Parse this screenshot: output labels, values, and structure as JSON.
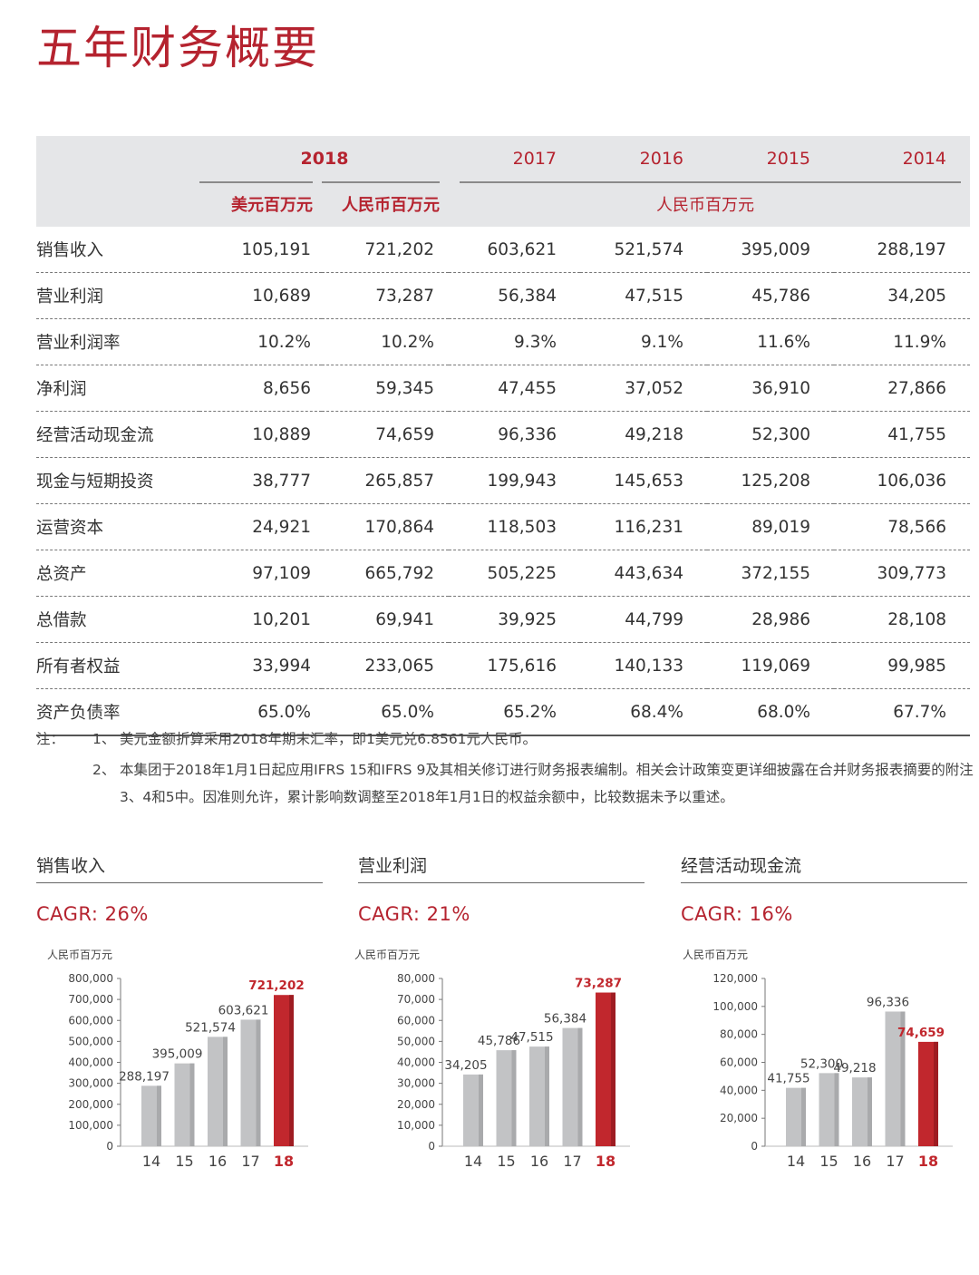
{
  "title": "五年财务概要",
  "table": {
    "years": [
      "2018",
      "2017",
      "2016",
      "2015",
      "2014"
    ],
    "unit_usd": "美元百万元",
    "unit_rmb_2018": "人民币百万元",
    "unit_rmb_other": "人民币百万元",
    "rows": [
      {
        "label": "销售收入",
        "v": [
          "105,191",
          "721,202",
          "603,621",
          "521,574",
          "395,009",
          "288,197"
        ]
      },
      {
        "label": "营业利润",
        "v": [
          "10,689",
          "73,287",
          "56,384",
          "47,515",
          "45,786",
          "34,205"
        ]
      },
      {
        "label": "营业利润率",
        "v": [
          "10.2%",
          "10.2%",
          "9.3%",
          "9.1%",
          "11.6%",
          "11.9%"
        ]
      },
      {
        "label": "净利润",
        "v": [
          "8,656",
          "59,345",
          "47,455",
          "37,052",
          "36,910",
          "27,866"
        ]
      },
      {
        "label": "经营活动现金流",
        "v": [
          "10,889",
          "74,659",
          "96,336",
          "49,218",
          "52,300",
          "41,755"
        ]
      },
      {
        "label": "现金与短期投资",
        "v": [
          "38,777",
          "265,857",
          "199,943",
          "145,653",
          "125,208",
          "106,036"
        ]
      },
      {
        "label": "运营资本",
        "v": [
          "24,921",
          "170,864",
          "118,503",
          "116,231",
          "89,019",
          "78,566"
        ]
      },
      {
        "label": "总资产",
        "v": [
          "97,109",
          "665,792",
          "505,225",
          "443,634",
          "372,155",
          "309,773"
        ]
      },
      {
        "label": "总借款",
        "v": [
          "10,201",
          "69,941",
          "39,925",
          "44,799",
          "28,986",
          "28,108"
        ]
      },
      {
        "label": "所有者权益",
        "v": [
          "33,994",
          "233,065",
          "175,616",
          "140,133",
          "119,069",
          "99,985"
        ]
      },
      {
        "label": "资产负债率",
        "v": [
          "65.0%",
          "65.0%",
          "65.2%",
          "68.4%",
          "68.0%",
          "67.7%"
        ]
      }
    ]
  },
  "notes": {
    "tag": "注：",
    "items": [
      {
        "num": "1、",
        "text": "美元金额折算采用2018年期末汇率，即1美元兑6.8561元人民币。"
      },
      {
        "num": "2、",
        "text": "本集团于2018年1月1日起应用IFRS 15和IFRS 9及其相关修订进行财务报表编制。相关会计政策变更详细披露在合并财务报表摘要的附注3、4和5中。因准则允许，累计影响数调整至2018年1月1日的权益余额中，比较数据未予以重述。"
      }
    ]
  },
  "colors": {
    "accent": "#b5232f",
    "bar_gray": "#c2c3c5",
    "bar_red": "#c1272d"
  },
  "chart_data": [
    {
      "type": "bar",
      "title": "销售收入",
      "cagr": "CAGR: 26%",
      "ylabel": "人民币百万元",
      "categories": [
        "14",
        "15",
        "16",
        "17",
        "18"
      ],
      "values": [
        288197,
        395009,
        521574,
        603621,
        721202
      ],
      "value_labels": [
        "288,197",
        "395,009",
        "521,574",
        "603,621",
        "721,202"
      ],
      "ylim": [
        0,
        800000
      ],
      "yticks": [
        0,
        100000,
        200000,
        300000,
        400000,
        500000,
        600000,
        700000,
        800000
      ],
      "ytick_labels": [
        "0",
        "100,000",
        "200,000",
        "300,000",
        "400,000",
        "500,000",
        "600,000",
        "700,000",
        "800,000"
      ],
      "highlight_index": 4
    },
    {
      "type": "bar",
      "title": "营业利润",
      "cagr": "CAGR: 21%",
      "ylabel": "人民币百万元",
      "categories": [
        "14",
        "15",
        "16",
        "17",
        "18"
      ],
      "values": [
        34205,
        45786,
        47515,
        56384,
        73287
      ],
      "value_labels": [
        "34,205",
        "45,786",
        "47,515",
        "56,384",
        "73,287"
      ],
      "ylim": [
        0,
        80000
      ],
      "yticks": [
        0,
        10000,
        20000,
        30000,
        40000,
        50000,
        60000,
        70000,
        80000
      ],
      "ytick_labels": [
        "0",
        "10,000",
        "20,000",
        "30,000",
        "40,000",
        "50,000",
        "60,000",
        "70,000",
        "80,000"
      ],
      "highlight_index": 4
    },
    {
      "type": "bar",
      "title": "经营活动现金流",
      "cagr": "CAGR: 16%",
      "ylabel": "人民币百万元",
      "categories": [
        "14",
        "15",
        "16",
        "17",
        "18"
      ],
      "values": [
        41755,
        52300,
        49218,
        96336,
        74659
      ],
      "value_labels": [
        "41,755",
        "52,300",
        "49,218",
        "96,336",
        "74,659"
      ],
      "ylim": [
        0,
        120000
      ],
      "yticks": [
        0,
        20000,
        40000,
        60000,
        80000,
        100000,
        120000
      ],
      "ytick_labels": [
        "0",
        "20,000",
        "40,000",
        "60,000",
        "80,000",
        "100,000",
        "120,000"
      ],
      "highlight_index": 4
    }
  ]
}
